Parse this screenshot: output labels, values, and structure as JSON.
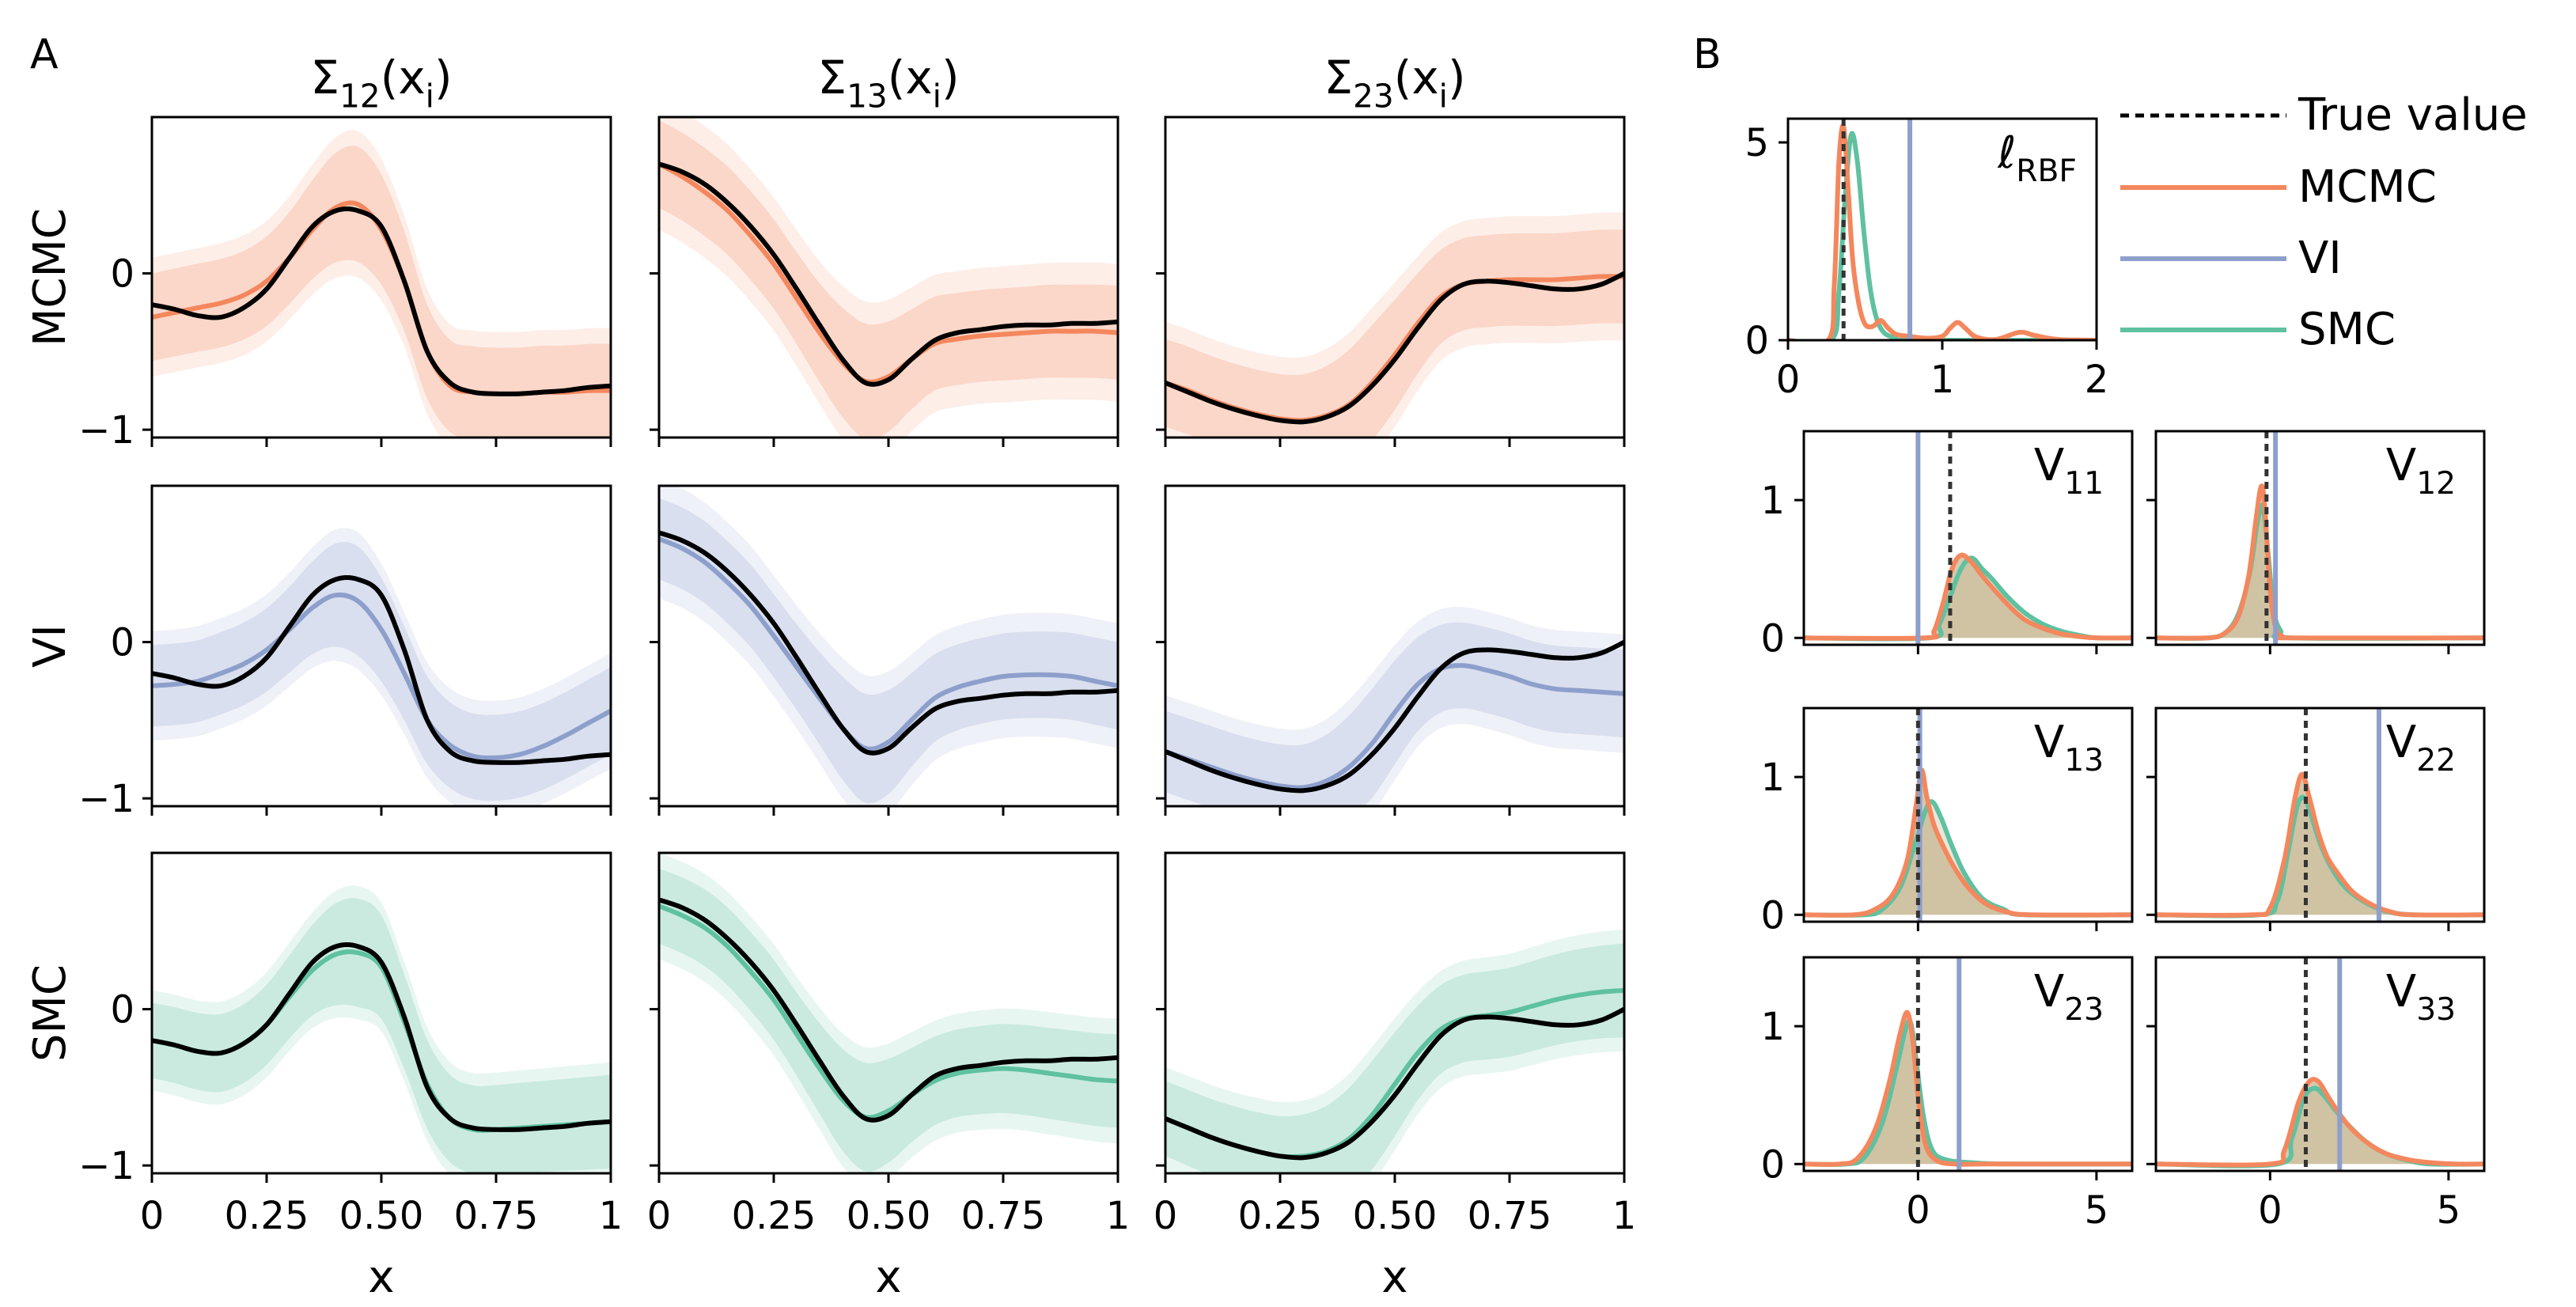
{
  "panel_labels": {
    "a": "A",
    "b": "B"
  },
  "colors": {
    "mcmc": "#f4875d",
    "vi": "#8d9fcb",
    "smc": "#5fc1a0",
    "true": "#000000",
    "hist_fill": "#c7b793"
  },
  "legend": {
    "true_value": "True value",
    "mcmc": "MCMC",
    "vi": "VI",
    "smc": "SMC"
  },
  "chart_data": [
    {
      "type": "line",
      "panel": "A",
      "column_titles": [
        {
          "base": "Σ",
          "sub": "12",
          "tail": "(x",
          "tail_sub": "i",
          "close": ")"
        },
        {
          "base": "Σ",
          "sub": "13",
          "tail": "(x",
          "tail_sub": "i",
          "close": ")"
        },
        {
          "base": "Σ",
          "sub": "23",
          "tail": "(x",
          "tail_sub": "i",
          "close": ")"
        }
      ],
      "row_labels": [
        "MCMC",
        "VI",
        "SMC"
      ],
      "xlabel": "x",
      "xlim": [
        0,
        1
      ],
      "ylim": [
        -1.05,
        1.0
      ],
      "xticks": [
        0,
        0.25,
        0.5,
        0.75,
        1
      ],
      "xtick_labels": [
        "0",
        "0.25",
        "0.50",
        "0.75",
        "1"
      ],
      "yticks": [
        -1,
        0
      ],
      "ytick_labels": [
        "−1",
        "0"
      ],
      "x": [
        0,
        0.05,
        0.1,
        0.15,
        0.2,
        0.25,
        0.3,
        0.35,
        0.4,
        0.45,
        0.5,
        0.55,
        0.6,
        0.65,
        0.7,
        0.75,
        0.8,
        0.85,
        0.9,
        0.95,
        1
      ],
      "true": [
        [
          -0.2,
          -0.23,
          -0.27,
          -0.28,
          -0.22,
          -0.1,
          0.1,
          0.3,
          0.4,
          0.4,
          0.3,
          -0.05,
          -0.5,
          -0.7,
          -0.76,
          -0.77,
          -0.77,
          -0.76,
          -0.75,
          -0.73,
          -0.72
        ],
        [
          0.7,
          0.65,
          0.57,
          0.45,
          0.3,
          0.12,
          -0.1,
          -0.33,
          -0.55,
          -0.7,
          -0.68,
          -0.55,
          -0.43,
          -0.38,
          -0.36,
          -0.34,
          -0.33,
          -0.33,
          -0.32,
          -0.32,
          -0.31
        ],
        [
          -0.7,
          -0.76,
          -0.82,
          -0.87,
          -0.91,
          -0.94,
          -0.95,
          -0.92,
          -0.85,
          -0.72,
          -0.55,
          -0.35,
          -0.17,
          -0.07,
          -0.05,
          -0.06,
          -0.08,
          -0.1,
          -0.1,
          -0.07,
          0.0
        ]
      ],
      "rows": [
        {
          "method": "mcmc",
          "mean": [
            [
              -0.28,
              -0.25,
              -0.22,
              -0.19,
              -0.14,
              -0.05,
              0.1,
              0.28,
              0.42,
              0.44,
              0.28,
              -0.05,
              -0.5,
              -0.72,
              -0.76,
              -0.77,
              -0.77,
              -0.76,
              -0.76,
              -0.75,
              -0.75
            ],
            [
              0.7,
              0.62,
              0.52,
              0.4,
              0.24,
              0.06,
              -0.16,
              -0.38,
              -0.57,
              -0.69,
              -0.66,
              -0.55,
              -0.45,
              -0.42,
              -0.4,
              -0.39,
              -0.38,
              -0.37,
              -0.37,
              -0.37,
              -0.38
            ],
            [
              -0.7,
              -0.75,
              -0.81,
              -0.86,
              -0.9,
              -0.93,
              -0.94,
              -0.91,
              -0.84,
              -0.7,
              -0.52,
              -0.32,
              -0.15,
              -0.07,
              -0.05,
              -0.04,
              -0.04,
              -0.04,
              -0.03,
              -0.02,
              -0.02
            ]
          ],
          "band": [
            0.28,
            0.3,
            0.24,
            0.3
          ],
          "outer_band": [
            0.1,
            0.14,
            0.11
          ]
        },
        {
          "method": "vi",
          "mean": [
            [
              -0.28,
              -0.27,
              -0.25,
              -0.2,
              -0.14,
              -0.05,
              0.08,
              0.22,
              0.3,
              0.26,
              0.08,
              -0.2,
              -0.5,
              -0.66,
              -0.73,
              -0.74,
              -0.72,
              -0.67,
              -0.6,
              -0.52,
              -0.44
            ],
            [
              0.66,
              0.6,
              0.51,
              0.38,
              0.23,
              0.04,
              -0.16,
              -0.36,
              -0.55,
              -0.68,
              -0.64,
              -0.5,
              -0.36,
              -0.29,
              -0.25,
              -0.22,
              -0.21,
              -0.21,
              -0.22,
              -0.25,
              -0.28
            ],
            [
              -0.7,
              -0.75,
              -0.8,
              -0.85,
              -0.89,
              -0.92,
              -0.93,
              -0.89,
              -0.8,
              -0.65,
              -0.45,
              -0.27,
              -0.17,
              -0.15,
              -0.18,
              -0.22,
              -0.27,
              -0.3,
              -0.31,
              -0.32,
              -0.33
            ]
          ],
          "band": [
            0.26,
            0.28,
            0.22,
            0.28
          ],
          "outer_band": [
            0.09,
            0.12,
            0.1
          ]
        },
        {
          "method": "smc",
          "mean": [
            [
              -0.2,
              -0.23,
              -0.27,
              -0.28,
              -0.22,
              -0.1,
              0.08,
              0.25,
              0.35,
              0.36,
              0.27,
              -0.08,
              -0.48,
              -0.7,
              -0.77,
              -0.77,
              -0.76,
              -0.75,
              -0.74,
              -0.73,
              -0.72
            ],
            [
              0.66,
              0.6,
              0.52,
              0.4,
              0.24,
              0.06,
              -0.16,
              -0.38,
              -0.58,
              -0.69,
              -0.65,
              -0.55,
              -0.46,
              -0.41,
              -0.39,
              -0.38,
              -0.39,
              -0.41,
              -0.43,
              -0.45,
              -0.46
            ],
            [
              -0.7,
              -0.76,
              -0.82,
              -0.87,
              -0.91,
              -0.94,
              -0.94,
              -0.91,
              -0.83,
              -0.68,
              -0.48,
              -0.28,
              -0.13,
              -0.06,
              -0.04,
              -0.02,
              0.02,
              0.06,
              0.09,
              0.11,
              0.12
            ]
          ],
          "band": [
            0.24,
            0.27,
            0.2,
            0.3
          ],
          "outer_band": [
            0.08,
            0.1,
            0.09
          ]
        }
      ]
    },
    {
      "type": "area",
      "panel": "B",
      "title_base": "ℓ",
      "title_sub": "RBF",
      "xlim": [
        0,
        2
      ],
      "ylim": [
        0,
        5.6
      ],
      "xticks": [
        0,
        1,
        2
      ],
      "xtick_labels": [
        "0",
        "1",
        "2"
      ],
      "yticks": [
        0,
        5
      ],
      "ytick_labels": [
        "0",
        "5"
      ],
      "true_value": 0.36,
      "vi_value": 0.79,
      "mcmc_density": {
        "x": [
          0,
          0.26,
          0.3,
          0.33,
          0.36,
          0.39,
          0.42,
          0.46,
          0.5,
          0.55,
          0.6,
          0.65,
          0.7,
          0.78,
          0.9,
          1.0,
          1.05,
          1.1,
          1.15,
          1.22,
          1.35,
          1.5,
          1.6,
          1.75,
          2.0
        ],
        "y": [
          0,
          0,
          1.4,
          4.5,
          5.4,
          3.8,
          2.0,
          0.9,
          0.4,
          0.35,
          0.5,
          0.3,
          0.15,
          0.1,
          0.05,
          0.1,
          0.3,
          0.45,
          0.3,
          0.08,
          0.02,
          0.2,
          0.12,
          0.02,
          0
        ]
      },
      "smc_density": {
        "x": [
          0,
          0.28,
          0.33,
          0.37,
          0.41,
          0.45,
          0.49,
          0.53,
          0.57,
          0.62,
          0.7,
          0.8,
          2.0
        ],
        "y": [
          0,
          0,
          1.2,
          3.6,
          5.2,
          4.5,
          2.8,
          1.4,
          0.6,
          0.2,
          0.05,
          0,
          0
        ]
      }
    },
    {
      "type": "area",
      "panel": "B",
      "xlim": [
        -3.2,
        6
      ],
      "ylim": [
        -0.05,
        1.5
      ],
      "xticks": [
        0,
        5
      ],
      "xtick_labels": [
        "0",
        "5"
      ],
      "yticks": [
        0,
        1
      ],
      "ytick_labels": [
        "0",
        "1"
      ],
      "panels": [
        {
          "label_base": "V",
          "label_sub": "11",
          "true_value": 0.9,
          "vi_value": 0.0,
          "mcmc": {
            "x": [
              -3.2,
              0.2,
              0.45,
              0.7,
              0.95,
              1.2,
              1.5,
              1.8,
              2.2,
              2.6,
              3.0,
              3.5,
              4.0,
              4.5,
              5.0,
              6.0
            ],
            "y": [
              0,
              0,
              0.05,
              0.25,
              0.5,
              0.6,
              0.55,
              0.45,
              0.33,
              0.22,
              0.13,
              0.07,
              0.03,
              0.01,
              0.0,
              0
            ]
          },
          "smc": {
            "x": [
              -3.2,
              0.3,
              0.6,
              0.9,
              1.2,
              1.5,
              1.8,
              2.1,
              2.5,
              3.0,
              3.5,
              4.0,
              4.5,
              5.0,
              6.0
            ],
            "y": [
              0,
              0,
              0.1,
              0.3,
              0.5,
              0.58,
              0.5,
              0.42,
              0.3,
              0.18,
              0.1,
              0.05,
              0.02,
              0.0,
              0
            ]
          }
        },
        {
          "label_base": "V",
          "label_sub": "12",
          "true_value": -0.1,
          "vi_value": 0.15,
          "mcmc": {
            "x": [
              -3.2,
              -1.8,
              -1.3,
              -0.9,
              -0.6,
              -0.4,
              -0.25,
              -0.15,
              0.0,
              0.15,
              0.35,
              0.7,
              6.0
            ],
            "y": [
              0,
              0,
              0.03,
              0.15,
              0.45,
              0.85,
              1.1,
              0.95,
              0.35,
              0.08,
              0.01,
              0,
              0
            ]
          },
          "smc": {
            "x": [
              -3.2,
              -1.7,
              -1.2,
              -0.85,
              -0.55,
              -0.35,
              -0.2,
              -0.05,
              0.1,
              0.3,
              0.6,
              6.0
            ],
            "y": [
              0,
              0,
              0.05,
              0.2,
              0.5,
              0.85,
              0.95,
              0.6,
              0.2,
              0.05,
              0,
              0
            ]
          }
        },
        {
          "label_base": "V",
          "label_sub": "13",
          "true_value": 0.0,
          "vi_value": 0.05,
          "mcmc": {
            "x": [
              -3.2,
              -1.8,
              -1.2,
              -0.7,
              -0.3,
              -0.05,
              0.1,
              0.25,
              0.45,
              0.7,
              1.0,
              1.4,
              1.9,
              2.5,
              3.2,
              6.0
            ],
            "y": [
              0,
              0,
              0.04,
              0.15,
              0.4,
              0.8,
              1.05,
              0.85,
              0.65,
              0.5,
              0.35,
              0.2,
              0.08,
              0.02,
              0,
              0
            ]
          },
          "smc": {
            "x": [
              -3.2,
              -1.5,
              -1.0,
              -0.5,
              -0.1,
              0.2,
              0.4,
              0.65,
              0.95,
              1.3,
              1.8,
              2.4,
              3.0,
              6.0
            ],
            "y": [
              0,
              0,
              0.04,
              0.2,
              0.5,
              0.75,
              0.82,
              0.7,
              0.5,
              0.3,
              0.12,
              0.04,
              0,
              0
            ]
          }
        },
        {
          "label_base": "V",
          "label_sub": "22",
          "true_value": 1.0,
          "vi_value": 3.05,
          "mcmc": {
            "x": [
              -3.2,
              -0.5,
              0.0,
              0.4,
              0.7,
              0.9,
              1.1,
              1.35,
              1.6,
              1.9,
              2.3,
              2.8,
              3.4,
              4.0,
              6.0
            ],
            "y": [
              0,
              0,
              0.05,
              0.4,
              0.85,
              1.02,
              0.85,
              0.6,
              0.42,
              0.3,
              0.17,
              0.08,
              0.02,
              0,
              0
            ]
          },
          "smc": {
            "x": [
              -3.2,
              -0.3,
              0.2,
              0.5,
              0.75,
              0.95,
              1.15,
              1.4,
              1.7,
              2.1,
              2.6,
              3.2,
              4.0,
              6.0
            ],
            "y": [
              0,
              0,
              0.1,
              0.45,
              0.78,
              0.85,
              0.72,
              0.52,
              0.35,
              0.2,
              0.1,
              0.03,
              0,
              0
            ]
          }
        },
        {
          "label_base": "V",
          "label_sub": "23",
          "true_value": 0.0,
          "vi_value": 1.15,
          "mcmc": {
            "x": [
              -3.2,
              -2.2,
              -1.7,
              -1.2,
              -0.8,
              -0.5,
              -0.3,
              -0.15,
              0.0,
              0.2,
              0.5,
              1.0,
              2.0,
              6.0
            ],
            "y": [
              0,
              0,
              0.04,
              0.25,
              0.6,
              0.95,
              1.1,
              0.9,
              0.5,
              0.15,
              0.03,
              0,
              0,
              0
            ]
          },
          "smc": {
            "x": [
              -3.2,
              -2.0,
              -1.5,
              -1.0,
              -0.6,
              -0.35,
              -0.2,
              -0.05,
              0.15,
              0.4,
              0.8,
              1.5,
              2.5,
              6.0
            ],
            "y": [
              0,
              0,
              0.05,
              0.3,
              0.7,
              0.98,
              1.02,
              0.75,
              0.35,
              0.1,
              0.03,
              0.01,
              0,
              0
            ]
          }
        },
        {
          "label_base": "V",
          "label_sub": "33",
          "true_value": 1.0,
          "vi_value": 1.95,
          "mcmc": {
            "x": [
              -3.2,
              0.0,
              0.4,
              0.8,
              1.1,
              1.35,
              1.6,
              1.9,
              2.3,
              2.8,
              3.3,
              3.9,
              4.5,
              5.2,
              6.0
            ],
            "y": [
              0,
              0,
              0.1,
              0.45,
              0.6,
              0.6,
              0.5,
              0.38,
              0.25,
              0.14,
              0.07,
              0.03,
              0.01,
              0,
              0
            ]
          },
          "smc": {
            "x": [
              -3.2,
              0.2,
              0.6,
              0.95,
              1.25,
              1.5,
              1.8,
              2.2,
              2.7,
              3.2,
              3.8,
              4.5,
              6.0
            ],
            "y": [
              0,
              0,
              0.18,
              0.48,
              0.55,
              0.5,
              0.4,
              0.28,
              0.16,
              0.08,
              0.03,
              0,
              0
            ]
          }
        }
      ]
    }
  ]
}
